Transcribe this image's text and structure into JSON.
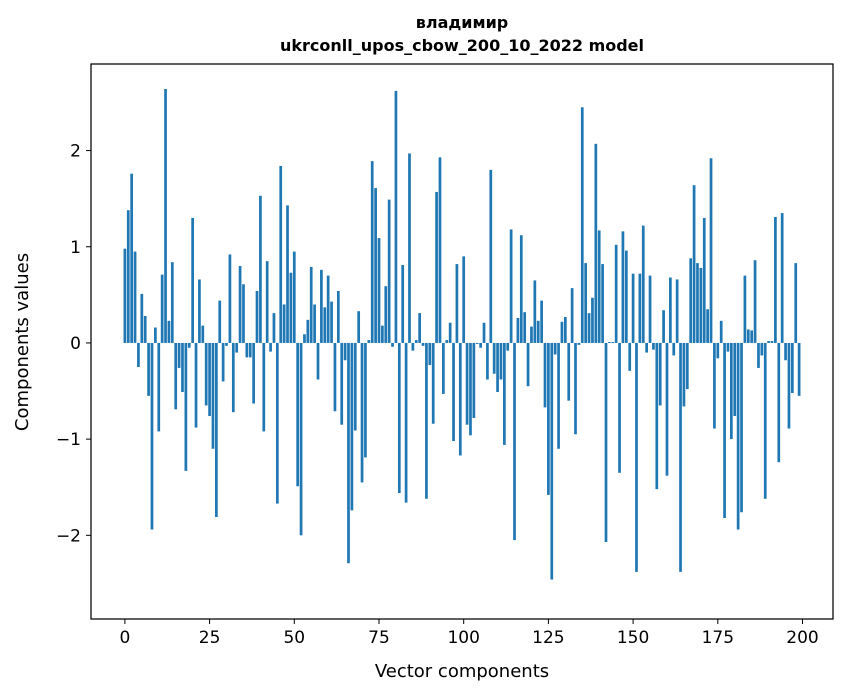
{
  "chart_data": {
    "type": "bar",
    "title": "владимир",
    "subtitle": "ukrconll_upos_cbow_200_10_2022 model",
    "xlabel": "Vector components",
    "ylabel": "Components values",
    "xlim": [
      -10,
      209
    ],
    "ylim": [
      -2.87,
      2.9
    ],
    "x_ticks": [
      0,
      25,
      50,
      75,
      100,
      125,
      150,
      175,
      200
    ],
    "x_tick_labels": [
      "0",
      "25",
      "50",
      "75",
      "100",
      "125",
      "150",
      "175",
      "200"
    ],
    "y_ticks": [
      -2,
      -1,
      0,
      1,
      2
    ],
    "y_tick_labels": [
      "−2",
      "−1",
      "0",
      "1",
      "2"
    ],
    "bar_color": "#1f77b4",
    "values": [
      0.98,
      1.38,
      1.76,
      0.95,
      -0.25,
      0.51,
      0.28,
      -0.55,
      -1.94,
      0.16,
      -0.92,
      0.71,
      2.64,
      0.23,
      0.84,
      -0.69,
      -0.26,
      -0.51,
      -1.33,
      -0.05,
      1.3,
      -0.88,
      0.66,
      0.18,
      -0.65,
      -0.76,
      -1.1,
      -1.81,
      0.44,
      -0.4,
      -0.03,
      0.92,
      -0.72,
      -0.1,
      0.8,
      0.61,
      -0.15,
      -0.15,
      -0.63,
      0.54,
      1.53,
      -0.92,
      0.85,
      -0.09,
      0.31,
      -1.67,
      1.84,
      0.4,
      1.43,
      0.73,
      0.95,
      -1.49,
      -2.0,
      0.09,
      0.24,
      0.79,
      0.4,
      -0.38,
      0.76,
      0.37,
      0.7,
      0.43,
      -0.71,
      0.54,
      -0.85,
      -0.18,
      -2.29,
      -1.74,
      -0.91,
      0.33,
      -1.45,
      -1.19,
      0.03,
      1.89,
      1.61,
      1.09,
      0.18,
      0.59,
      1.49,
      -0.04,
      2.62,
      -1.56,
      0.81,
      -1.66,
      1.97,
      -0.08,
      0.03,
      0.31,
      -0.03,
      -1.62,
      -0.23,
      -0.84,
      1.57,
      1.93,
      -0.53,
      0.03,
      0.21,
      -1.02,
      0.82,
      -1.17,
      0.9,
      -0.85,
      -0.96,
      -0.78,
      -0.01,
      -0.05,
      0.21,
      -0.38,
      1.8,
      -0.32,
      -0.51,
      -0.38,
      -1.06,
      -0.08,
      1.18,
      -2.05,
      0.26,
      1.12,
      0.32,
      -0.45,
      0.17,
      0.65,
      0.23,
      0.44,
      -0.67,
      -1.58,
      -2.46,
      -0.12,
      -1.1,
      0.22,
      0.27,
      -0.6,
      0.57,
      -0.95,
      -0.02,
      2.45,
      0.83,
      0.31,
      0.47,
      2.07,
      1.17,
      0.82,
      -2.07,
      0.01,
      0.01,
      1.02,
      -1.35,
      1.16,
      0.96,
      -0.29,
      0.72,
      -2.38,
      0.72,
      1.22,
      -0.1,
      0.7,
      -0.07,
      -1.52,
      -0.65,
      0.34,
      -1.38,
      0.68,
      -0.13,
      0.66,
      -2.38,
      -0.66,
      -0.48,
      0.88,
      1.64,
      0.83,
      0.78,
      1.3,
      0.35,
      1.92,
      -0.89,
      -0.16,
      0.23,
      -1.82,
      -0.09,
      -1.0,
      -0.76,
      -1.94,
      -1.76,
      0.7,
      0.14,
      0.13,
      0.86,
      -0.26,
      -0.13,
      -1.62,
      0.02,
      0.02,
      1.31,
      -1.24,
      1.35,
      -0.18,
      -0.89,
      -0.52,
      0.83,
      -0.55
    ]
  }
}
